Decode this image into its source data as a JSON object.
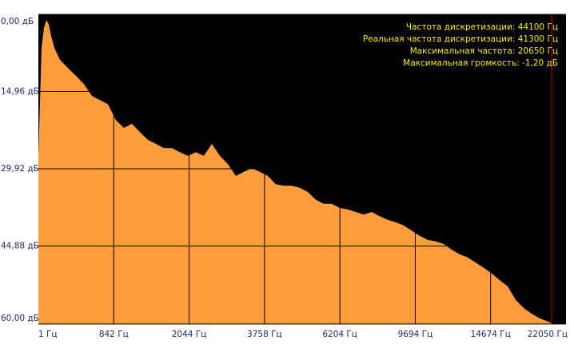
{
  "chart_data": {
    "type": "area",
    "color": "#ff9c3c",
    "background": "#000000",
    "y_inverted": true,
    "grid": true,
    "info": [
      "Частота дискретизации: 44100 Гц",
      "Реальная частота дискретизации: 41300 Гц",
      "Максимальная частота: 20650 Гц",
      "Максимальная громкость: -1,20 дБ"
    ],
    "info_color": "#ffea00",
    "max_frequency": 20650,
    "max_frequency_color": "#c00000",
    "x": [
      1,
      37,
      63,
      90,
      117,
      144,
      179,
      242,
      331,
      420,
      509,
      599,
      688,
      777,
      876,
      1004,
      1131,
      1259,
      1386,
      1514,
      1641,
      1769,
      1896,
      2024,
      2197,
      2379,
      2560,
      2742,
      2924,
      3106,
      3288,
      3470,
      3651,
      3864,
      4123,
      4383,
      4642,
      4902,
      5161,
      5421,
      5680,
      5940,
      6199,
      6570,
      6940,
      7310,
      7680,
      8050,
      8420,
      8790,
      9160,
      9530,
      9990,
      10518,
      11046,
      11574,
      12102,
      12630,
      13158,
      13686,
      14214,
      14776,
      15558,
      16340,
      17122,
      17904,
      18686,
      19468,
      20250,
      20600
    ],
    "values": [
      27.4,
      6.5,
      2.6,
      1.1,
      1.9,
      4.2,
      6.5,
      8.8,
      10.4,
      11.9,
      13.5,
      15.8,
      16.6,
      17.4,
      20.5,
      22.0,
      21.2,
      22.8,
      24.3,
      25.1,
      25.9,
      25.9,
      26.7,
      27.4,
      26.7,
      27.4,
      25.1,
      27.4,
      29.0,
      31.3,
      30.5,
      29.8,
      30.5,
      31.3,
      32.9,
      33.2,
      33.2,
      33.6,
      34.4,
      35.9,
      36.7,
      36.7,
      37.5,
      37.8,
      38.3,
      38.8,
      38.3,
      39.1,
      39.8,
      40.3,
      40.9,
      41.9,
      42.9,
      43.7,
      44.0,
      44.5,
      45.6,
      46.5,
      47.1,
      48.1,
      49.1,
      50.2,
      51.5,
      52.7,
      55.3,
      56.9,
      58.0,
      58.9,
      59.5,
      59.8
    ],
    "xticks": [
      {
        "value": 1,
        "label": "1 Гц"
      },
      {
        "value": 842,
        "label": "842 Гц"
      },
      {
        "value": 2044,
        "label": "2044 Гц"
      },
      {
        "value": 3758,
        "label": "3758 Гц"
      },
      {
        "value": 6204,
        "label": "6204 Гц"
      },
      {
        "value": 9694,
        "label": "9694 Гц"
      },
      {
        "value": 14674,
        "label": "14674 Гц"
      },
      {
        "value": 22050,
        "label": "22050 Гц"
      }
    ],
    "ylim": [
      0,
      60
    ],
    "yticks": [
      {
        "value": 0,
        "label": "0,00 дБ"
      },
      {
        "value": 14.96,
        "label": "14,96 дБ"
      },
      {
        "value": 29.92,
        "label": "29,92 дБ"
      },
      {
        "value": 44.88,
        "label": "44,88 дБ"
      },
      {
        "value": 60,
        "label": "60,00 дБ"
      }
    ]
  }
}
